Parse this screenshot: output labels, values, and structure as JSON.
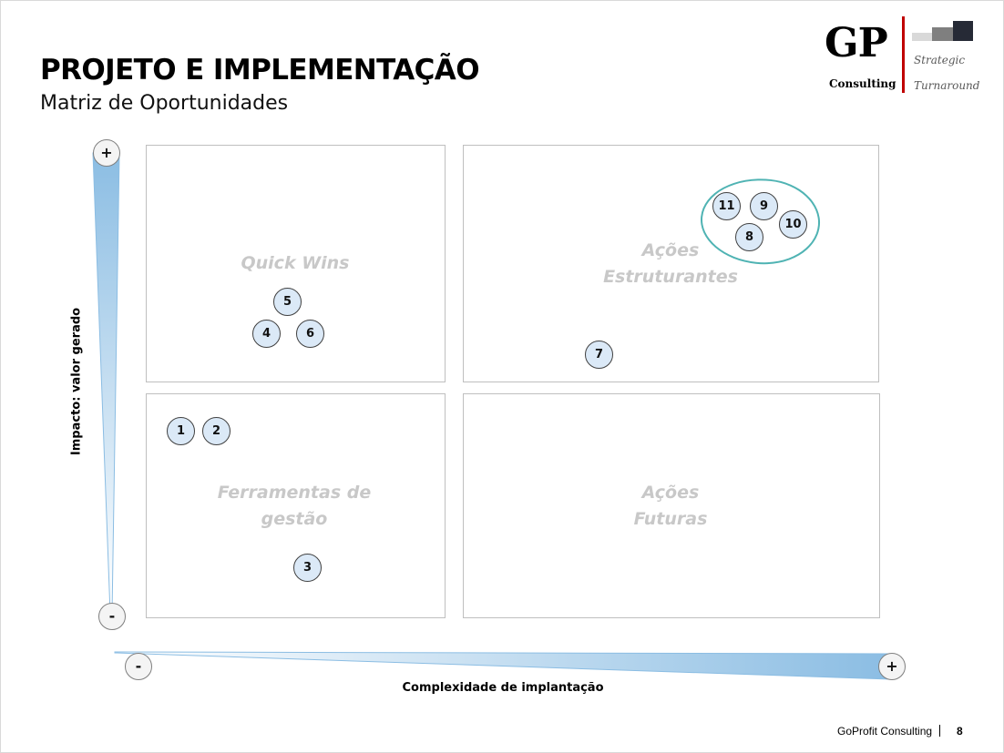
{
  "header": {
    "title": "PROJETO E IMPLEMENTAÇÃO",
    "subtitle": "Matriz de Oportunidades"
  },
  "logo": {
    "monogram": "GP",
    "consulting": "Consulting",
    "tagline_line1": "Strategic",
    "tagline_line2": "Turnaround",
    "accent_color": "#c00000"
  },
  "matrix": {
    "quadrants": {
      "top_left": "Quick Wins",
      "top_right_line1": "Ações",
      "top_right_line2": "Estruturantes",
      "bottom_left_line1": "Ferramentas de",
      "bottom_left_line2": "gestão",
      "bottom_right_line1": "Ações",
      "bottom_right_line2": "Futuras"
    },
    "items": [
      "1",
      "2",
      "3",
      "4",
      "5",
      "6",
      "7",
      "8",
      "9",
      "10",
      "11"
    ],
    "bubble_fill": "#dbe9f7",
    "cluster_color": "#4fb3b3",
    "axis_color": "#8bbde3"
  },
  "axes": {
    "y_label": "Impacto: valor gerado",
    "x_label": "Complexidade de implantação",
    "plus": "+",
    "minus": "-"
  },
  "footer": {
    "company": "GoProfit Consulting",
    "page": "8"
  }
}
